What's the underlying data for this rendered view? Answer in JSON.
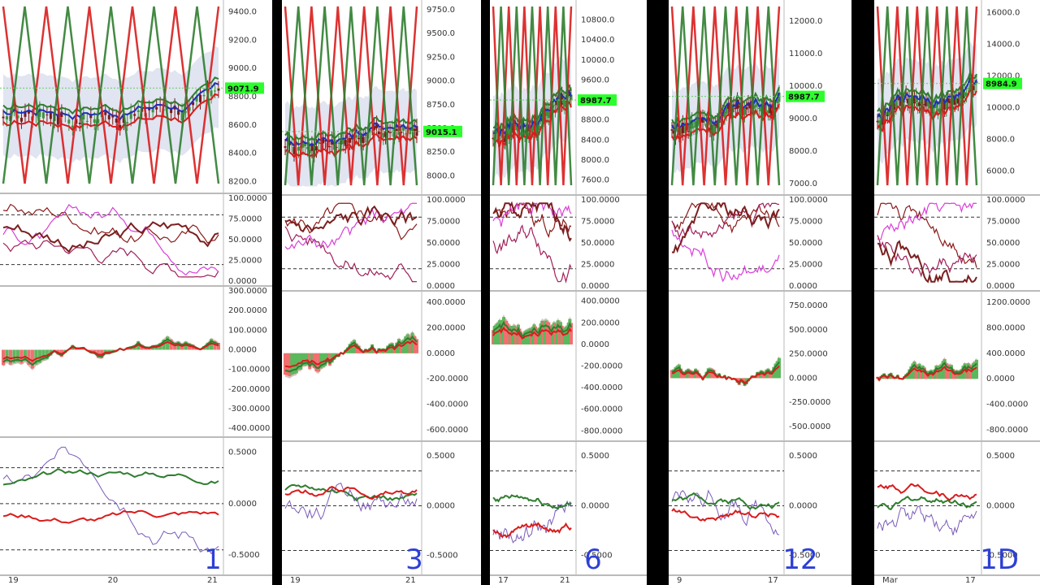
{
  "chart_data": [
    {
      "type": "line",
      "timeframe_label": "1",
      "price_tag": "9071.9",
      "x_ticks": [
        "19",
        "20",
        "21"
      ],
      "subplots": [
        {
          "name": "price",
          "ticks": [
            "9400.0",
            "9200.0",
            "9000.0",
            "8800.0",
            "8600.0",
            "8400.0",
            "8200.0"
          ],
          "ylim": [
            8150,
            9450
          ]
        },
        {
          "name": "stochastic",
          "ticks": [
            "100.0000",
            "75.0000",
            "50.0000",
            "25.0000",
            "0.0000"
          ],
          "ylim": [
            0,
            100
          ]
        },
        {
          "name": "macd",
          "ticks": [
            "300.0000",
            "200.0000",
            "100.0000",
            "0.0000",
            "-100.0000",
            "-200.0000",
            "-300.0000",
            "-400.0000"
          ],
          "ylim": [
            -420,
            300
          ]
        },
        {
          "name": "oscillator",
          "ticks": [
            "0.5000",
            "0.0000",
            "-0.5000"
          ],
          "ylim": [
            -0.65,
            0.6
          ]
        }
      ]
    },
    {
      "type": "line",
      "timeframe_label": "3",
      "price_tag": "9015.1",
      "x_ticks": [
        "19",
        "21"
      ],
      "subplots": [
        {
          "name": "price",
          "ticks": [
            "9750.0",
            "9500.0",
            "9250.0",
            "9000.0",
            "8750.0",
            "8500.0",
            "8250.0",
            "8000.0"
          ],
          "ylim": [
            7850,
            9800
          ]
        },
        {
          "name": "stochastic",
          "ticks": [
            "100.0000",
            "75.0000",
            "50.0000",
            "25.0000",
            "0.0000"
          ],
          "ylim": [
            0,
            100
          ]
        },
        {
          "name": "macd",
          "ticks": [
            "400.0000",
            "200.0000",
            "0.0000",
            "-200.0000",
            "-400.0000",
            "-600.0000"
          ],
          "ylim": [
            -650,
            450
          ]
        },
        {
          "name": "oscillator",
          "ticks": [
            "0.5000",
            "0.0000",
            "-0.5000"
          ],
          "ylim": [
            -0.65,
            0.6
          ]
        }
      ]
    },
    {
      "type": "line",
      "timeframe_label": "6",
      "price_tag": "8987.7",
      "x_ticks": [
        "17",
        "21"
      ],
      "subplots": [
        {
          "name": "price",
          "ticks": [
            "10800.0",
            "10400.0",
            "10000.0",
            "9600.0",
            "9200.0",
            "8800.0",
            "8400.0",
            "8000.0",
            "7600.0"
          ],
          "ylim": [
            7400,
            11100
          ]
        },
        {
          "name": "stochastic",
          "ticks": [
            "100.0000",
            "75.0000",
            "50.0000",
            "25.0000",
            "0.0000"
          ],
          "ylim": [
            0,
            100
          ]
        },
        {
          "name": "macd",
          "ticks": [
            "400.0000",
            "200.0000",
            "0.0000",
            "-200.0000",
            "-400.0000",
            "-600.0000",
            "-800.0000"
          ],
          "ylim": [
            -850,
            450
          ]
        },
        {
          "name": "oscillator",
          "ticks": [
            "0.5000",
            "0.0000",
            "-0.5000"
          ],
          "ylim": [
            -0.65,
            0.6
          ]
        }
      ]
    },
    {
      "type": "line",
      "timeframe_label": "12",
      "price_tag": "8987.7",
      "x_ticks": [
        "9",
        "17"
      ],
      "subplots": [
        {
          "name": "price",
          "ticks": [
            "12000.0",
            "11000.0",
            "10000.0",
            "9000.0",
            "8000.0",
            "7000.0"
          ],
          "ylim": [
            6800,
            12500
          ]
        },
        {
          "name": "stochastic",
          "ticks": [
            "100.0000",
            "75.0000",
            "50.0000",
            "25.0000",
            "0.0000"
          ],
          "ylim": [
            0,
            100
          ]
        },
        {
          "name": "macd",
          "ticks": [
            "750.0000",
            "500.0000",
            "250.0000",
            "0.0000",
            "-250.0000",
            "-500.0000"
          ],
          "ylim": [
            -600,
            850
          ]
        },
        {
          "name": "oscillator",
          "ticks": [
            "0.5000",
            "0.0000",
            "-0.5000"
          ],
          "ylim": [
            -0.65,
            0.6
          ]
        }
      ]
    },
    {
      "type": "line",
      "timeframe_label": "1D",
      "price_tag": "8984.9",
      "x_ticks": [
        "Mar",
        "17"
      ],
      "subplots": [
        {
          "name": "price",
          "ticks": [
            "16000.0",
            "14000.0",
            "12000.0",
            "10000.0",
            "8000.0",
            "6000.0"
          ],
          "ylim": [
            4800,
            16500
          ]
        },
        {
          "name": "stochastic",
          "ticks": [
            "100.0000",
            "75.0000",
            "50.0000",
            "25.0000",
            "0.0000"
          ],
          "ylim": [
            0,
            100
          ]
        },
        {
          "name": "macd",
          "ticks": [
            "1200.0000",
            "800.0000",
            "400.0000",
            "0.0000",
            "-400.0000",
            "-800.0000"
          ],
          "ylim": [
            -900,
            1300
          ]
        },
        {
          "name": "oscillator",
          "ticks": [
            "0.5000",
            "0.0000",
            "-0.5000"
          ],
          "ylim": [
            -0.65,
            0.6
          ]
        }
      ]
    }
  ]
}
